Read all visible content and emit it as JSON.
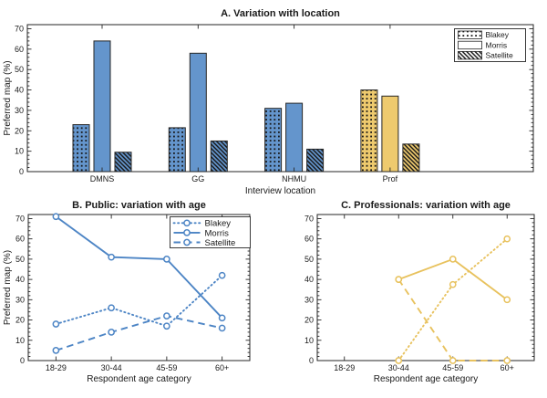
{
  "figure": {
    "background": "#ffffff",
    "text_color": "#1a1a1a",
    "axis_color": "#262626"
  },
  "colors": {
    "blue_bar": "#6495cc",
    "blue_line": "#4d85c5",
    "yellow_bar": "#eeca6e",
    "yellow_line": "#e8c25e",
    "bar_edge": "#262626",
    "pattern_dark": "#161616",
    "legend_swatch_bg": "#ffffff"
  },
  "chart_data": [
    {
      "id": "A",
      "type": "bar",
      "title": "A. Variation with location",
      "xlabel": "Interview location",
      "ylabel": "Preferred map (%)",
      "ylim": [
        0,
        72
      ],
      "yticks": [
        0,
        10,
        20,
        30,
        40,
        50,
        60,
        70
      ],
      "categories": [
        "DMNS",
        "GG",
        "NHMU",
        "Prof"
      ],
      "group_colors": [
        "blue",
        "blue",
        "blue",
        "yellow"
      ],
      "series": [
        {
          "name": "Blakey",
          "pattern": "dots",
          "values": [
            23,
            21.5,
            31,
            40
          ]
        },
        {
          "name": "Morris",
          "pattern": "solid",
          "values": [
            64,
            58,
            33.5,
            37
          ]
        },
        {
          "name": "Satellite",
          "pattern": "hatch",
          "values": [
            9.5,
            15,
            11,
            13.5
          ]
        }
      ],
      "legend": {
        "position": "top-right",
        "entries": [
          "Blakey",
          "Morris",
          "Satellite"
        ]
      }
    },
    {
      "id": "B",
      "type": "line",
      "title": "B. Public: variation with age",
      "xlabel": "Respondent age category",
      "ylabel": "Preferred map (%)",
      "ylim": [
        0,
        72
      ],
      "yticks": [
        0,
        10,
        20,
        30,
        40,
        50,
        60,
        70
      ],
      "categories": [
        "18-29",
        "30-44",
        "45-59",
        "60+"
      ],
      "color": "blue",
      "series": [
        {
          "name": "Blakey",
          "style": "dotted",
          "values": [
            18,
            26,
            17,
            42
          ]
        },
        {
          "name": "Morris",
          "style": "solid",
          "values": [
            71,
            51,
            50,
            21
          ]
        },
        {
          "name": "Satellite",
          "style": "dashed",
          "values": [
            5,
            14,
            22,
            16
          ]
        }
      ],
      "legend": {
        "position": "top-right",
        "entries": [
          "Blakey",
          "Morris",
          "Satellite"
        ]
      }
    },
    {
      "id": "C",
      "type": "line",
      "title": "C. Professionals: variation with age",
      "xlabel": "Respondent age category",
      "ylabel": "",
      "ylim": [
        0,
        72
      ],
      "yticks": [
        0,
        10,
        20,
        30,
        40,
        50,
        60,
        70
      ],
      "categories": [
        "18-29",
        "30-44",
        "45-59",
        "60+"
      ],
      "color": "yellow",
      "series": [
        {
          "name": "Blakey",
          "style": "dotted",
          "values": [
            null,
            0,
            37.5,
            60
          ]
        },
        {
          "name": "Morris",
          "style": "solid",
          "values": [
            null,
            40,
            50,
            30
          ]
        },
        {
          "name": "Satellite",
          "style": "dashed",
          "values": [
            null,
            40,
            0,
            0
          ]
        }
      ],
      "legend": null
    }
  ]
}
